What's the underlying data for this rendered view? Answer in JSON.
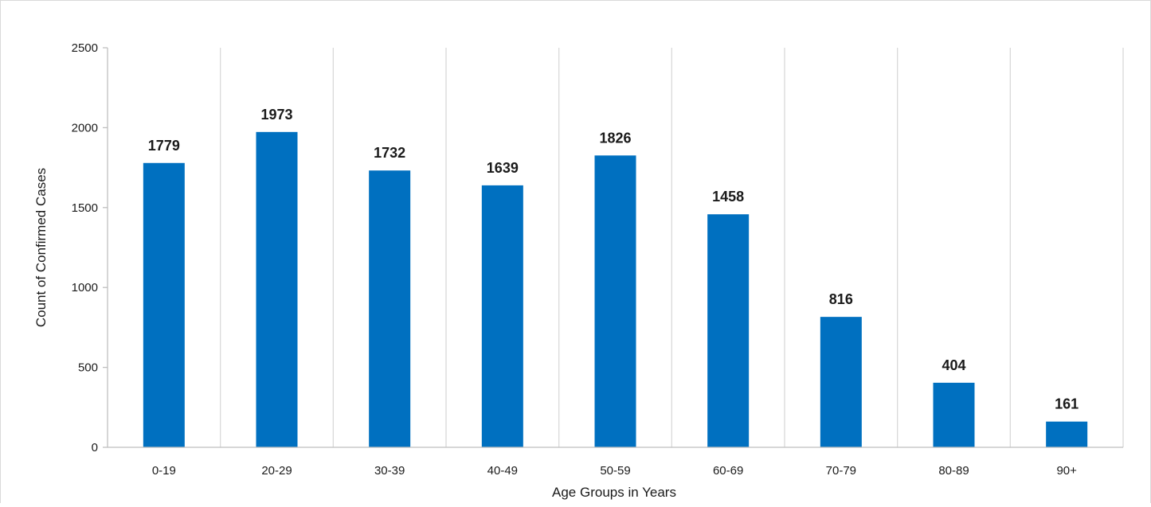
{
  "chart_data": {
    "type": "bar",
    "title": "",
    "xlabel": "Age Groups in Years",
    "ylabel": "Count of Confirmed Cases",
    "categories": [
      "0-19",
      "20-29",
      "30-39",
      "40-49",
      "50-59",
      "60-69",
      "70-79",
      "80-89",
      "90+"
    ],
    "values": [
      1779,
      1973,
      1732,
      1639,
      1826,
      1458,
      816,
      404,
      161
    ],
    "ylim": [
      0,
      2500
    ],
    "yticks": [
      0,
      500,
      1000,
      1500,
      2000,
      2500
    ],
    "grid": "vertical",
    "legend": "none",
    "bar_color": "#0070C0"
  }
}
